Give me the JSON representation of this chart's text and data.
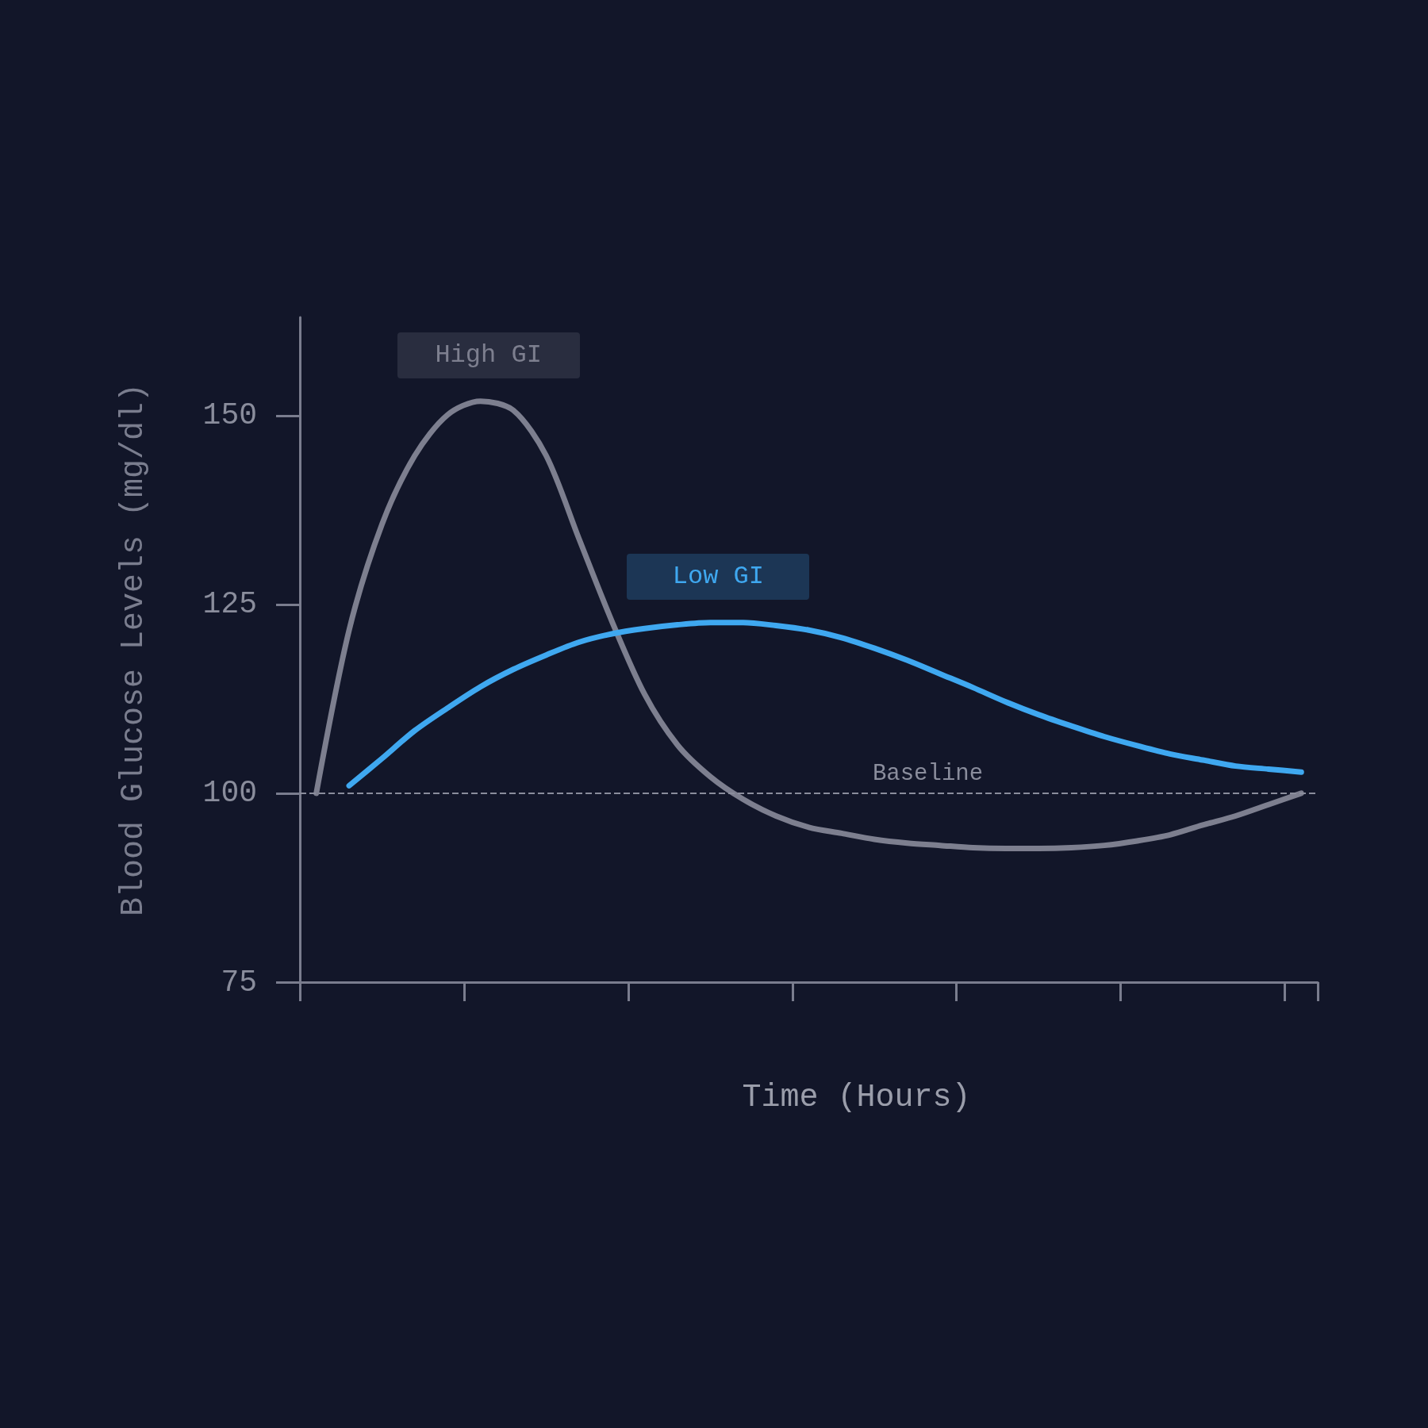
{
  "chart_data": {
    "type": "line",
    "xlabel": "Time (Hours)",
    "ylabel": "Blood Glucose Levels (mg/dl)",
    "categories": [
      null,
      null,
      null,
      null,
      null,
      null,
      null,
      null,
      null,
      null,
      null,
      null,
      null,
      null,
      null,
      null,
      null,
      null,
      null,
      null,
      null,
      null,
      null,
      null,
      null,
      null,
      null,
      null,
      null,
      null,
      null
    ],
    "series": [
      {
        "name": "High GI",
        "color": "#7d7f8f",
        "values": [
          100,
          121.6,
          135.6,
          144.7,
          150.1,
          151.9,
          150.7,
          144.7,
          133.7,
          122.8,
          113.1,
          106.4,
          102.2,
          99.2,
          97,
          95.5,
          94.7,
          93.9,
          93.4,
          93.1,
          92.8,
          92.7,
          92.7,
          92.8,
          93.1,
          93.7,
          94.5,
          95.8,
          97,
          98.5,
          100
        ]
      },
      {
        "name": "Low GI",
        "color": "#3fa8f0",
        "values": [
          null,
          101,
          104.6,
          108.3,
          111.3,
          114.1,
          116.4,
          118.3,
          120,
          121.1,
          121.8,
          122.3,
          122.6,
          122.6,
          122.2,
          121.6,
          120.6,
          119.2,
          117.6,
          115.8,
          114,
          112.1,
          110.4,
          108.9,
          107.5,
          106.3,
          105.2,
          104.4,
          103.6,
          103.2,
          102.8
        ]
      }
    ],
    "ylim": [
      75,
      163
    ],
    "yticks": [
      75,
      100,
      125,
      150
    ],
    "grid": false,
    "legend": false,
    "marker": "none",
    "ref_lines": [
      {
        "axis": "y",
        "value": 100,
        "label": "Baseline",
        "line_style": "dashed",
        "color": "#8a8d9c"
      }
    ]
  }
}
